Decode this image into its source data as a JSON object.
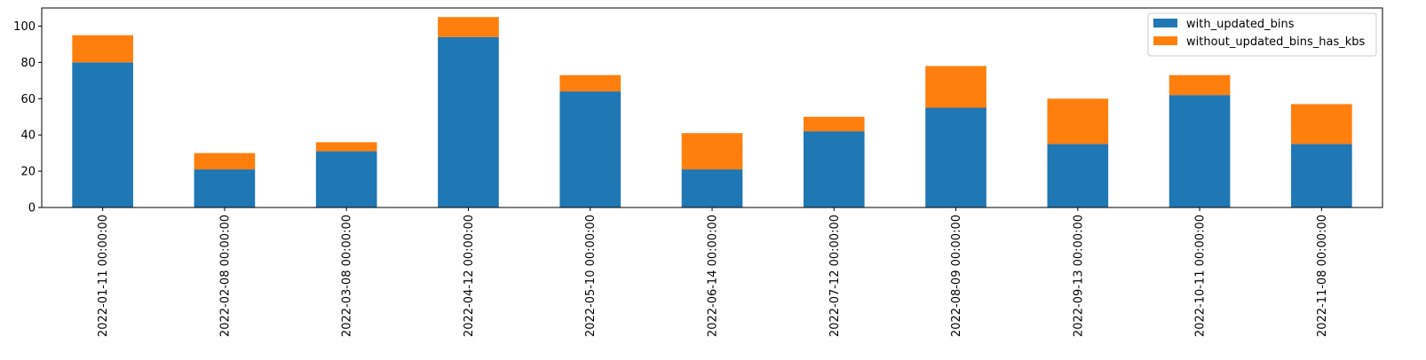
{
  "chart_data": {
    "type": "bar",
    "stacked": true,
    "categories": [
      "2022-01-11 00:00:00",
      "2022-02-08 00:00:00",
      "2022-03-08 00:00:00",
      "2022-04-12 00:00:00",
      "2022-05-10 00:00:00",
      "2022-06-14 00:00:00",
      "2022-07-12 00:00:00",
      "2022-08-09 00:00:00",
      "2022-09-13 00:00:00",
      "2022-10-11 00:00:00",
      "2022-11-08 00:00:00"
    ],
    "series": [
      {
        "name": "with_updated_bins",
        "color": "#1f77b4",
        "values": [
          80,
          21,
          31,
          94,
          64,
          21,
          42,
          55,
          35,
          62,
          35
        ]
      },
      {
        "name": "without_updated_bins_has_kbs",
        "color": "#ff7f0e",
        "values": [
          15,
          9,
          5,
          11,
          9,
          20,
          8,
          23,
          25,
          11,
          22
        ]
      }
    ],
    "ylim": [
      0,
      110
    ],
    "yticks": [
      0,
      20,
      40,
      60,
      80,
      100
    ],
    "xlabel": "",
    "ylabel": "",
    "title": "",
    "grid": false,
    "legend_position": "top-right"
  }
}
